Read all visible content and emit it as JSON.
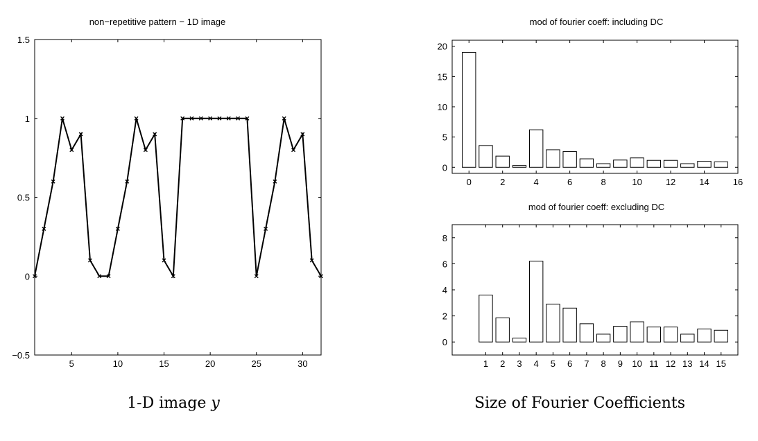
{
  "captions": {
    "left": "1-D image ",
    "left_var": "y",
    "right": "Size of Fourier Coefficients"
  },
  "colors": {
    "line": "#000000",
    "bar_fill": "#ffffff",
    "axis": "#000000"
  },
  "chart_data": [
    {
      "type": "line",
      "title": "non−repetitive pattern − 1D image",
      "xlabel": "",
      "ylabel": "",
      "xlim": [
        1,
        32
      ],
      "ylim": [
        -0.5,
        1.5
      ],
      "xticks": [
        5,
        10,
        15,
        20,
        25,
        30
      ],
      "xtick_labels": [
        "5",
        "10",
        "15",
        "20",
        "25",
        "30"
      ],
      "yticks": [
        -0.5,
        0,
        0.5,
        1,
        1.5
      ],
      "ytick_labels": [
        "−0.5",
        "0",
        "0.5",
        "1",
        "1.5"
      ],
      "marker": "x",
      "x": [
        1,
        2,
        3,
        4,
        5,
        6,
        7,
        8,
        9,
        10,
        11,
        12,
        13,
        14,
        15,
        16,
        17,
        18,
        19,
        20,
        21,
        22,
        23,
        24,
        25,
        26,
        27,
        28,
        29,
        30,
        31,
        32
      ],
      "y": [
        0,
        0.3,
        0.6,
        1,
        0.8,
        0.9,
        0.1,
        0,
        0,
        0.3,
        0.6,
        1,
        0.8,
        0.9,
        0.1,
        0,
        1,
        1,
        1,
        1,
        1,
        1,
        1,
        1,
        0,
        0.3,
        0.6,
        1,
        0.8,
        0.9,
        0.1,
        0
      ]
    },
    {
      "type": "bar",
      "title": "mod of fourier coeff: including DC",
      "xlabel": "",
      "ylabel": "",
      "xlim": [
        -1,
        16
      ],
      "ylim": [
        -1,
        21
      ],
      "xticks": [
        0,
        2,
        4,
        6,
        8,
        10,
        12,
        14,
        16
      ],
      "xtick_labels": [
        "0",
        "2",
        "4",
        "6",
        "8",
        "10",
        "12",
        "14",
        "16"
      ],
      "yticks": [
        0,
        5,
        10,
        15,
        20
      ],
      "ytick_labels": [
        "0",
        "5",
        "10",
        "15",
        "20"
      ],
      "x": [
        0,
        1,
        2,
        3,
        4,
        5,
        6,
        7,
        8,
        9,
        10,
        11,
        12,
        13,
        14,
        15
      ],
      "values": [
        19,
        3.6,
        1.85,
        0.3,
        6.2,
        2.9,
        2.6,
        1.4,
        0.6,
        1.2,
        1.55,
        1.15,
        1.15,
        0.6,
        1.0,
        0.9
      ]
    },
    {
      "type": "bar",
      "title": "mod of fourier coeff: excluding DC",
      "xlabel": "",
      "ylabel": "",
      "xlim": [
        -1,
        16
      ],
      "ylim": [
        -1,
        9
      ],
      "xticks": [
        1,
        2,
        3,
        4,
        5,
        6,
        7,
        8,
        9,
        10,
        11,
        12,
        13,
        14,
        15
      ],
      "xtick_labels": [
        "1",
        "2",
        "3",
        "4",
        "5",
        "6",
        "7",
        "8",
        "9",
        "10",
        "11",
        "12",
        "13",
        "14",
        "15"
      ],
      "yticks": [
        0,
        2,
        4,
        6,
        8
      ],
      "ytick_labels": [
        "0",
        "2",
        "4",
        "6",
        "8"
      ],
      "x": [
        1,
        2,
        3,
        4,
        5,
        6,
        7,
        8,
        9,
        10,
        11,
        12,
        13,
        14,
        15
      ],
      "values": [
        3.6,
        1.85,
        0.3,
        6.2,
        2.9,
        2.6,
        1.4,
        0.6,
        1.2,
        1.55,
        1.15,
        1.15,
        0.6,
        1.0,
        0.9
      ]
    }
  ]
}
